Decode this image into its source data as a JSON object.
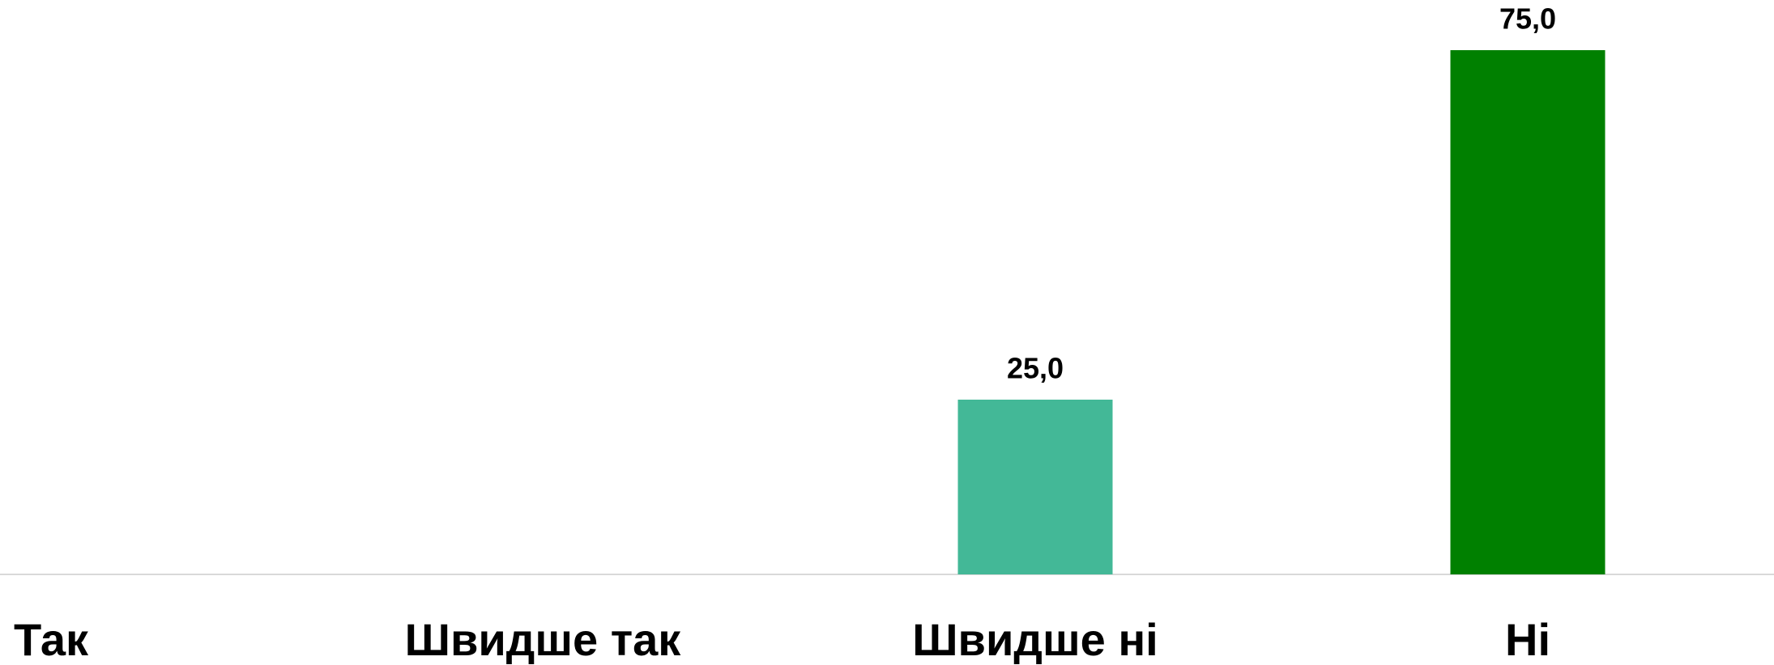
{
  "chart_data": {
    "type": "bar",
    "categories": [
      "Так",
      "Швидше так",
      "Швидше ні",
      "Ні"
    ],
    "values": [
      null,
      null,
      25,
      75
    ],
    "value_labels": [
      null,
      null,
      "25,0",
      "75,0"
    ],
    "colors": [
      "#43b897",
      "#43b897",
      "#43b897",
      "#008000"
    ],
    "ylim": [
      0,
      75
    ]
  }
}
